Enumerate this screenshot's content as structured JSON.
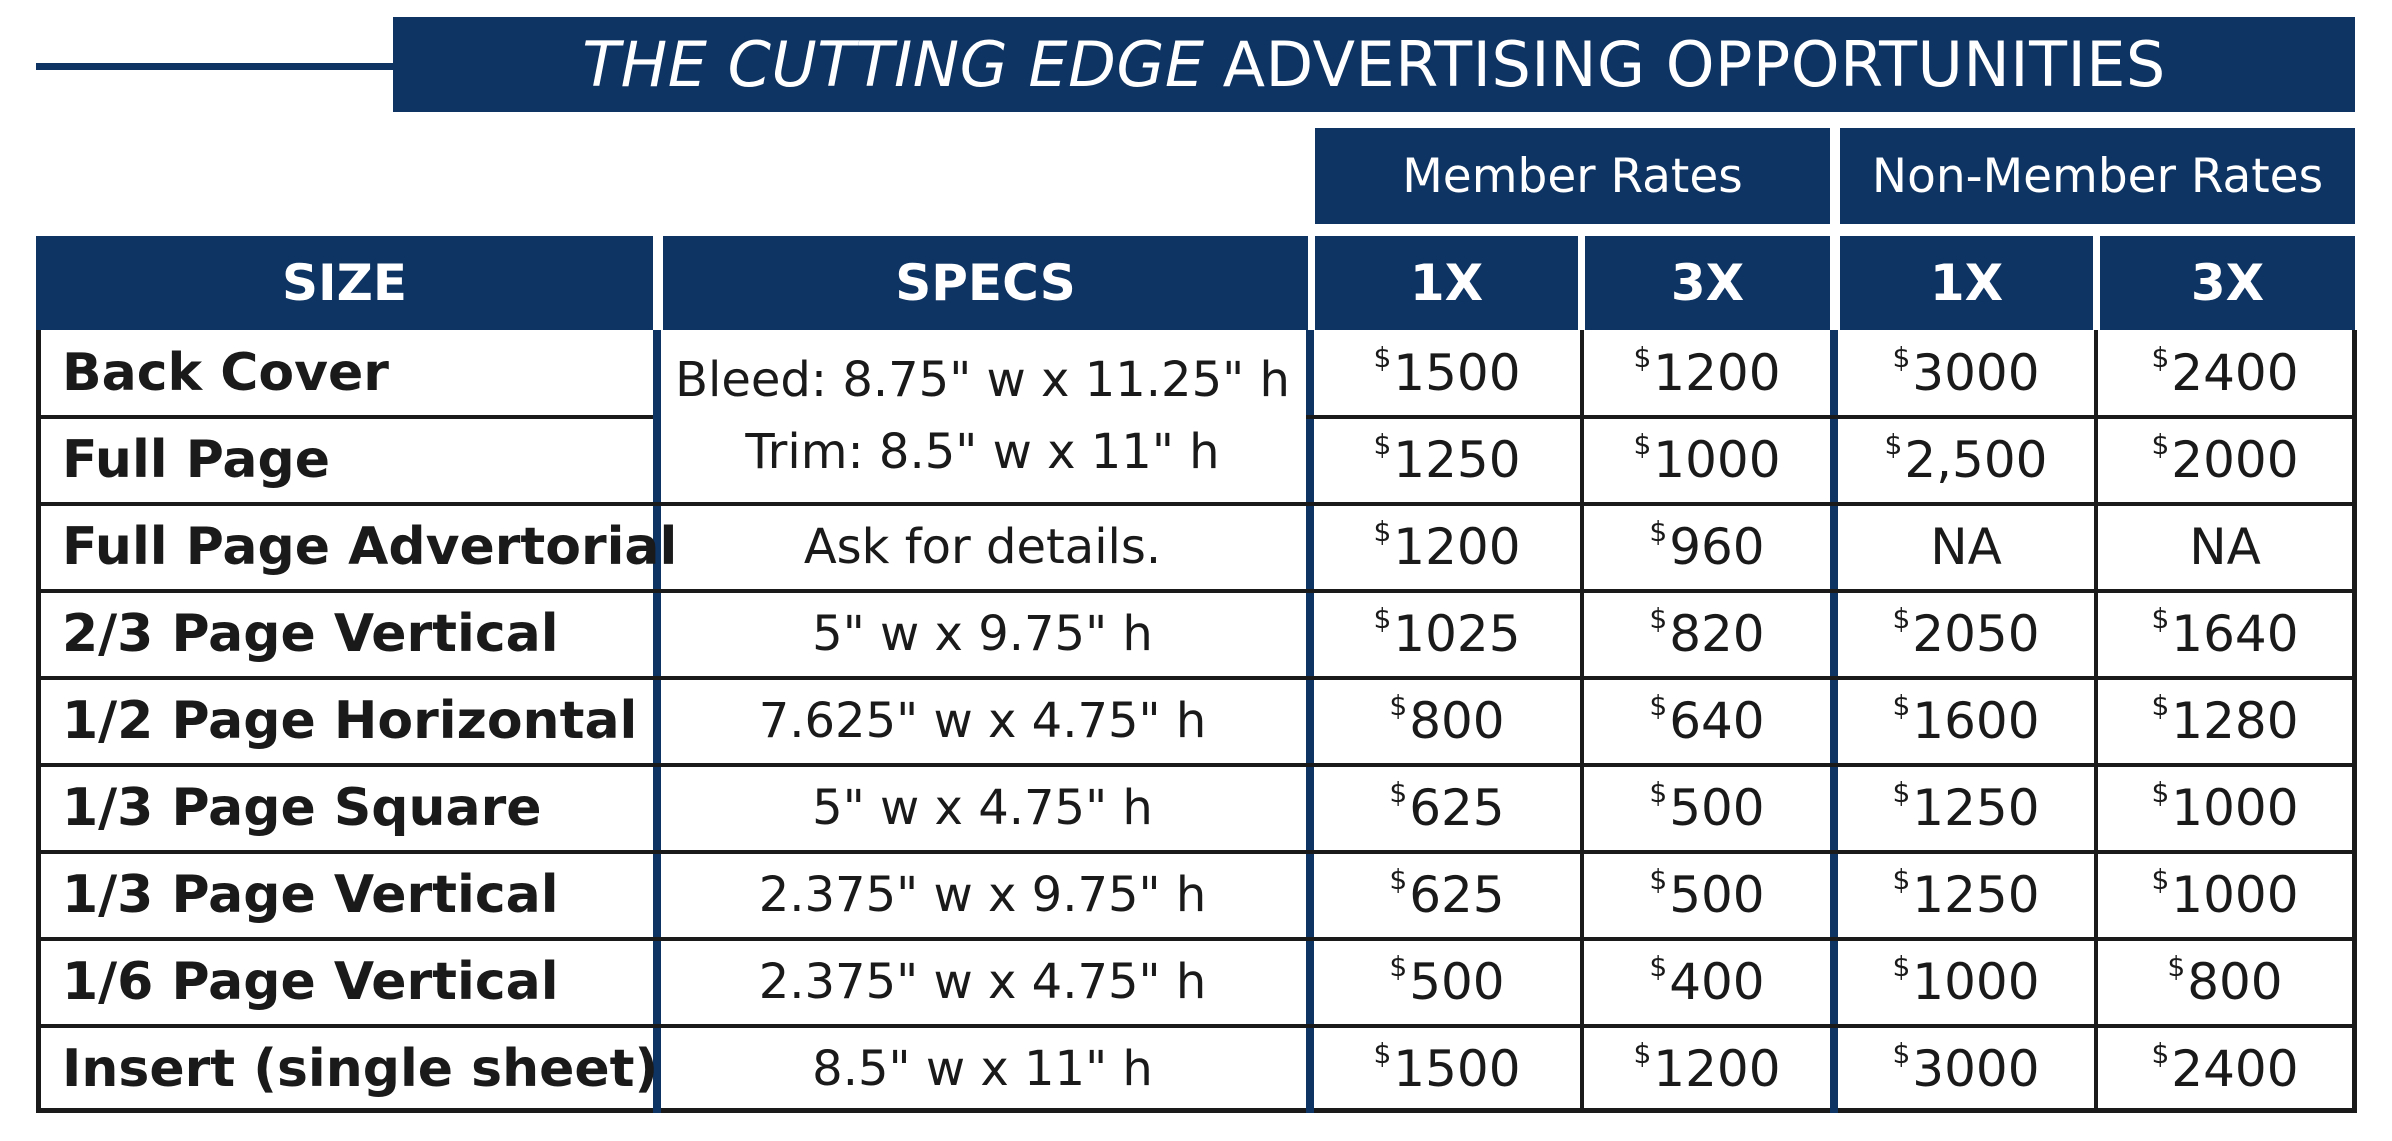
{
  "title": {
    "italic": "THE CUTTING EDGE",
    "rest": "ADVERTISING OPPORTUNITIES"
  },
  "groups": {
    "member": "Member Rates",
    "non_member": "Non-Member Rates"
  },
  "headers": {
    "size": "SIZE",
    "specs": "SPECS",
    "m1": "1X",
    "m3": "3X",
    "n1": "1X",
    "n3": "3X"
  },
  "specs": {
    "shared_line1": "Bleed: 8.75\" w x 11.25\" h",
    "shared_line2": "Trim: 8.5\" w x 11\" h"
  },
  "rows": [
    {
      "size": "Back Cover",
      "spec": "",
      "m1": "1500",
      "m3": "1200",
      "n1": "3000",
      "n3": "2400"
    },
    {
      "size": "Full Page",
      "spec": "",
      "m1": "1250",
      "m3": "1000",
      "n1": "2,500",
      "n3": "2000"
    },
    {
      "size": "Full Page Advertorial",
      "spec": "Ask for details.",
      "m1": "1200",
      "m3": "960",
      "n1": "NA",
      "n3": "NA"
    },
    {
      "size": "2/3 Page Vertical",
      "spec": "5\" w x 9.75\" h",
      "m1": "1025",
      "m3": "820",
      "n1": "2050",
      "n3": "1640"
    },
    {
      "size": "1/2 Page Horizontal",
      "spec": "7.625\" w x 4.75\" h",
      "m1": "800",
      "m3": "640",
      "n1": "1600",
      "n3": "1280"
    },
    {
      "size": "1/3 Page Square",
      "spec": "5\" w x 4.75\" h",
      "m1": "625",
      "m3": "500",
      "n1": "1250",
      "n3": "1000"
    },
    {
      "size": "1/3 Page Vertical",
      "spec": "2.375\" w x 9.75\" h",
      "m1": "625",
      "m3": "500",
      "n1": "1250",
      "n3": "1000"
    },
    {
      "size": "1/6 Page Vertical",
      "spec": "2.375\" w x 4.75\" h",
      "m1": "500",
      "m3": "400",
      "n1": "1000",
      "n3": "800"
    },
    {
      "size": "Insert (single sheet)",
      "spec": "8.5\" w x 11\" h",
      "m1": "1500",
      "m3": "1200",
      "n1": "3000",
      "n3": "2400"
    }
  ],
  "currency_symbol": "$",
  "colors": {
    "navy": "#0e3464",
    "rule": "#1a1a1a"
  }
}
